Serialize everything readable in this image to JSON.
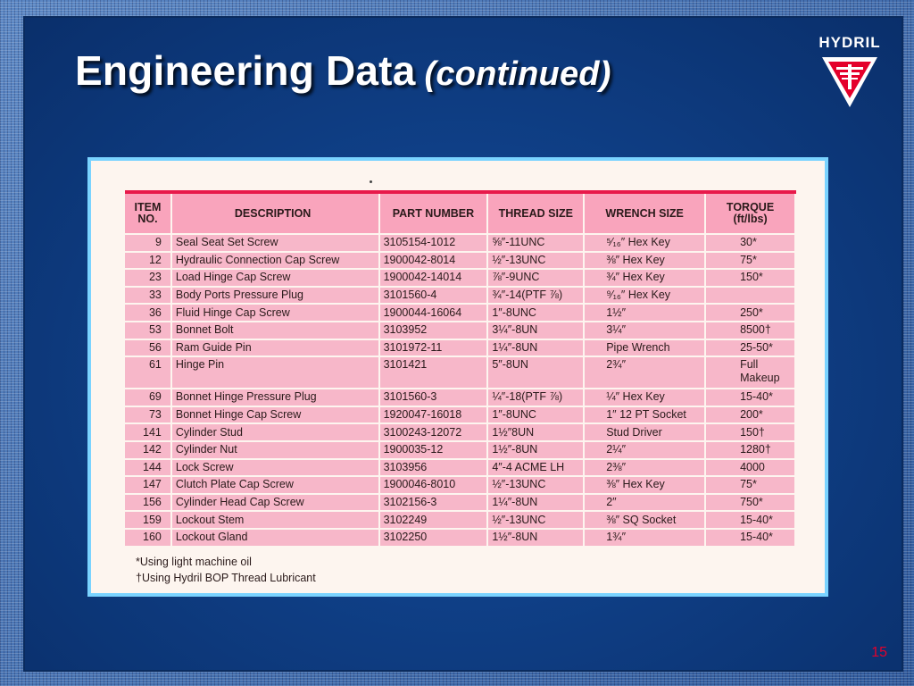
{
  "title": "Engineering Data",
  "subtitle": "(continued)",
  "logo_text": "HYDRIL",
  "page_number": "15",
  "table": {
    "headers": [
      "ITEM NO.",
      "DESCRIPTION",
      "PART NUMBER",
      "THREAD SIZE",
      "WRENCH SIZE",
      "TORQUE (ft/lbs)"
    ],
    "rows": [
      [
        "9",
        "Seal Seat Set Screw",
        "3105154-1012",
        "⅝″-11UNC",
        "⁵⁄₁₆″ Hex Key",
        "30*"
      ],
      [
        "12",
        "Hydraulic Connection Cap Screw",
        "1900042-8014",
        "½″-13UNC",
        "⅜″ Hex Key",
        "75*"
      ],
      [
        "23",
        "Load Hinge Cap Screw",
        "1900042-14014",
        "⅞″-9UNC",
        "¾″ Hex Key",
        "150*"
      ],
      [
        "33",
        "Body Ports Pressure Plug",
        "3101560-4",
        "¾″-14(PTF ⅞)",
        "⁹⁄₁₆″ Hex Key",
        ""
      ],
      [
        "36",
        "Fluid Hinge Cap Screw",
        "1900044-16064",
        "1″-8UNC",
        "1½″",
        "250*"
      ],
      [
        "53",
        "Bonnet Bolt",
        "3103952",
        "3¼″-8UN",
        "3¼″",
        "8500†"
      ],
      [
        "56",
        "Ram Guide Pin",
        "3101972-11",
        "1¼″-8UN",
        "Pipe Wrench",
        "25-50*"
      ],
      [
        "61",
        "Hinge Pin",
        "3101421",
        "5″-8UN",
        "2¾″",
        "Full Makeup"
      ],
      [
        "69",
        "Bonnet Hinge Pressure Plug",
        "3101560-3",
        "¼″-18(PTF ⅞)",
        "¼″ Hex Key",
        "15-40*"
      ],
      [
        "73",
        "Bonnet Hinge Cap Screw",
        "1920047-16018",
        "1″-8UNC",
        "1″ 12 PT Socket",
        "200*"
      ],
      [
        "141",
        "Cylinder Stud",
        "3100243-12072",
        "1½″8UN",
        "Stud Driver",
        "150†"
      ],
      [
        "142",
        "Cylinder Nut",
        "1900035-12",
        "1½″-8UN",
        "2¼″",
        "1280†"
      ],
      [
        "144",
        "Lock Screw",
        "3103956",
        "4″-4 ACME LH",
        "2⅜″",
        "4000"
      ],
      [
        "147",
        "Clutch Plate Cap Screw",
        "1900046-8010",
        "½″-13UNC",
        "⅜″ Hex Key",
        "75*"
      ],
      [
        "156",
        "Cylinder Head Cap Screw",
        "3102156-3",
        "1¼″-8UN",
        "2″",
        "750*"
      ],
      [
        "159",
        "Lockout Stem",
        "3102249",
        "½″-13UNC",
        "⅜″ SQ Socket",
        "15-40*"
      ],
      [
        "160",
        "Lockout Gland",
        "3102250",
        "1½″-8UN",
        "1¾″",
        "15-40*"
      ]
    ]
  },
  "notes": [
    "*Using light machine oil",
    "†Using Hydril BOP Thread Lubricant"
  ],
  "colors": {
    "background": "#0f3f86",
    "table_pink": "#f7b7c9",
    "header_pink": "#f9a4bc",
    "accent_red": "#e8194a",
    "frame_cyan": "#7ad3ff"
  }
}
